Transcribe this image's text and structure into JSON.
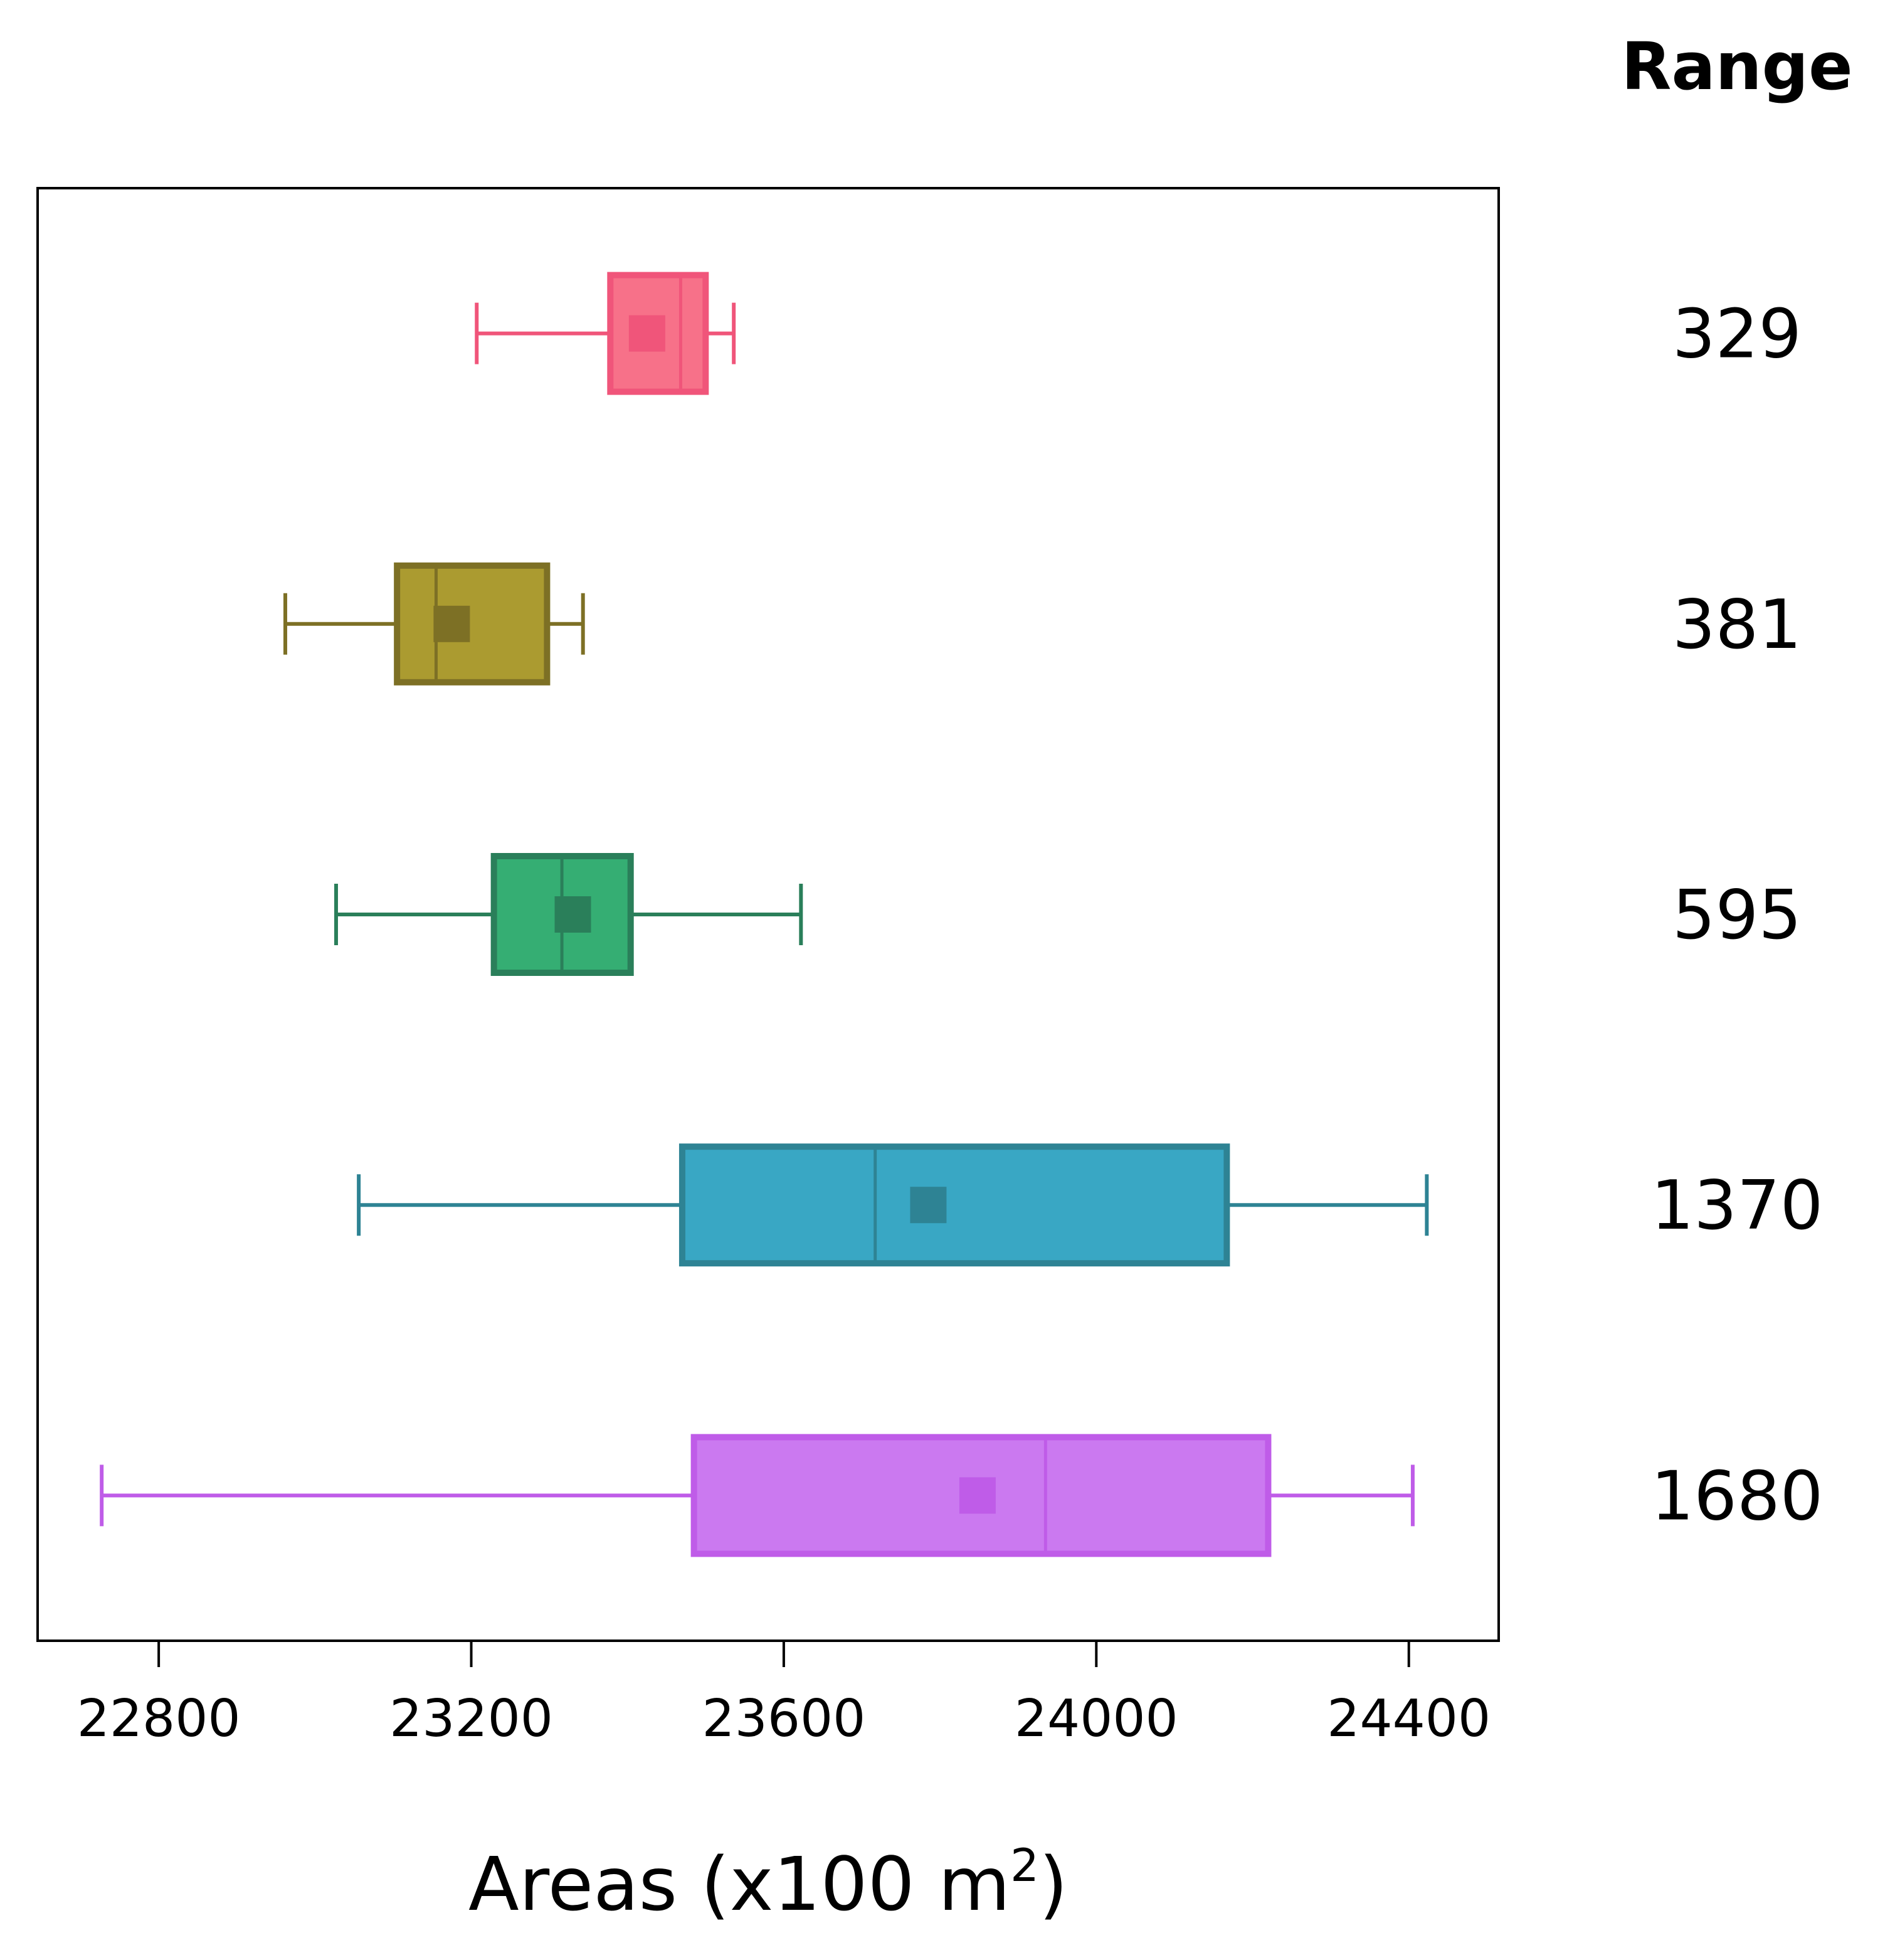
{
  "chart_data": {
    "type": "boxplot",
    "orientation": "horizontal",
    "xlabel_main": "Areas (x100 m",
    "xlabel_sup": "2",
    "xlabel_tail": ")",
    "xlim": [
      22645,
      24515
    ],
    "xticks": [
      22800,
      23200,
      23600,
      24000,
      24400
    ],
    "tick_labels": [
      "22800",
      "23200",
      "23600",
      "24000",
      "24400"
    ],
    "right_header": "Range",
    "grid": false,
    "series": [
      {
        "range_label": "329",
        "whisker_low": 23207,
        "q1": 23378,
        "median": 23468,
        "q3": 23500,
        "whisker_high": 23536,
        "mean": 23425,
        "fill": "#f77189",
        "edge": "#f0557a",
        "mean_color": "#f0557a"
      },
      {
        "range_label": "381",
        "whisker_low": 22962,
        "q1": 23105,
        "median": 23155,
        "q3": 23297,
        "whisker_high": 23343,
        "mean": 23175,
        "fill": "#ab9b30",
        "edge": "#7d7025",
        "mean_color": "#7d7025"
      },
      {
        "range_label": "595",
        "whisker_low": 23027,
        "q1": 23229,
        "median": 23316,
        "q3": 23404,
        "whisker_high": 23622,
        "mean": 23330,
        "fill": "#35ae73",
        "edge": "#2a7f5a",
        "mean_color": "#2a7f5a"
      },
      {
        "range_label": "1370",
        "whisker_low": 23056,
        "q1": 23470,
        "median": 23717,
        "q3": 24167,
        "whisker_high": 24423,
        "mean": 23785,
        "fill": "#39a7c4",
        "edge": "#2e8394",
        "mean_color": "#2e8394"
      },
      {
        "range_label": "1680",
        "whisker_low": 22727,
        "q1": 23485,
        "median": 23935,
        "q3": 24220,
        "whisker_high": 24405,
        "mean": 23848,
        "fill": "#cb79f0",
        "edge": "#bf5ce8",
        "mean_color": "#bf5ce8"
      }
    ]
  }
}
